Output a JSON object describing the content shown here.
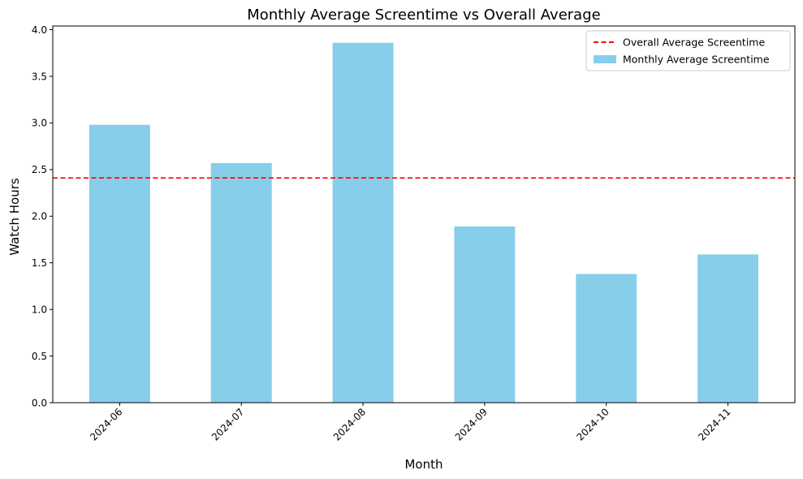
{
  "chart_data": {
    "type": "bar",
    "title": "Monthly Average Screentime vs Overall Average",
    "xlabel": "Month",
    "ylabel": "Watch Hours",
    "categories": [
      "2024-06",
      "2024-07",
      "2024-08",
      "2024-09",
      "2024-10",
      "2024-11"
    ],
    "series": [
      {
        "name": "Monthly Average Screentime",
        "values": [
          2.98,
          2.57,
          3.86,
          1.89,
          1.38,
          1.59
        ],
        "color": "#87ceeb"
      }
    ],
    "reference_lines": [
      {
        "name": "Overall Average Screentime",
        "value": 2.41,
        "color": "#ff0000",
        "style": "dashed"
      }
    ],
    "ylim": [
      0,
      4.04
    ],
    "yticks": [
      "0.0",
      "0.5",
      "1.0",
      "1.5",
      "2.0",
      "2.5",
      "3.0",
      "3.5",
      "4.0"
    ],
    "xtick_rotation": 45,
    "grid": false,
    "legend_position": "top-right"
  }
}
